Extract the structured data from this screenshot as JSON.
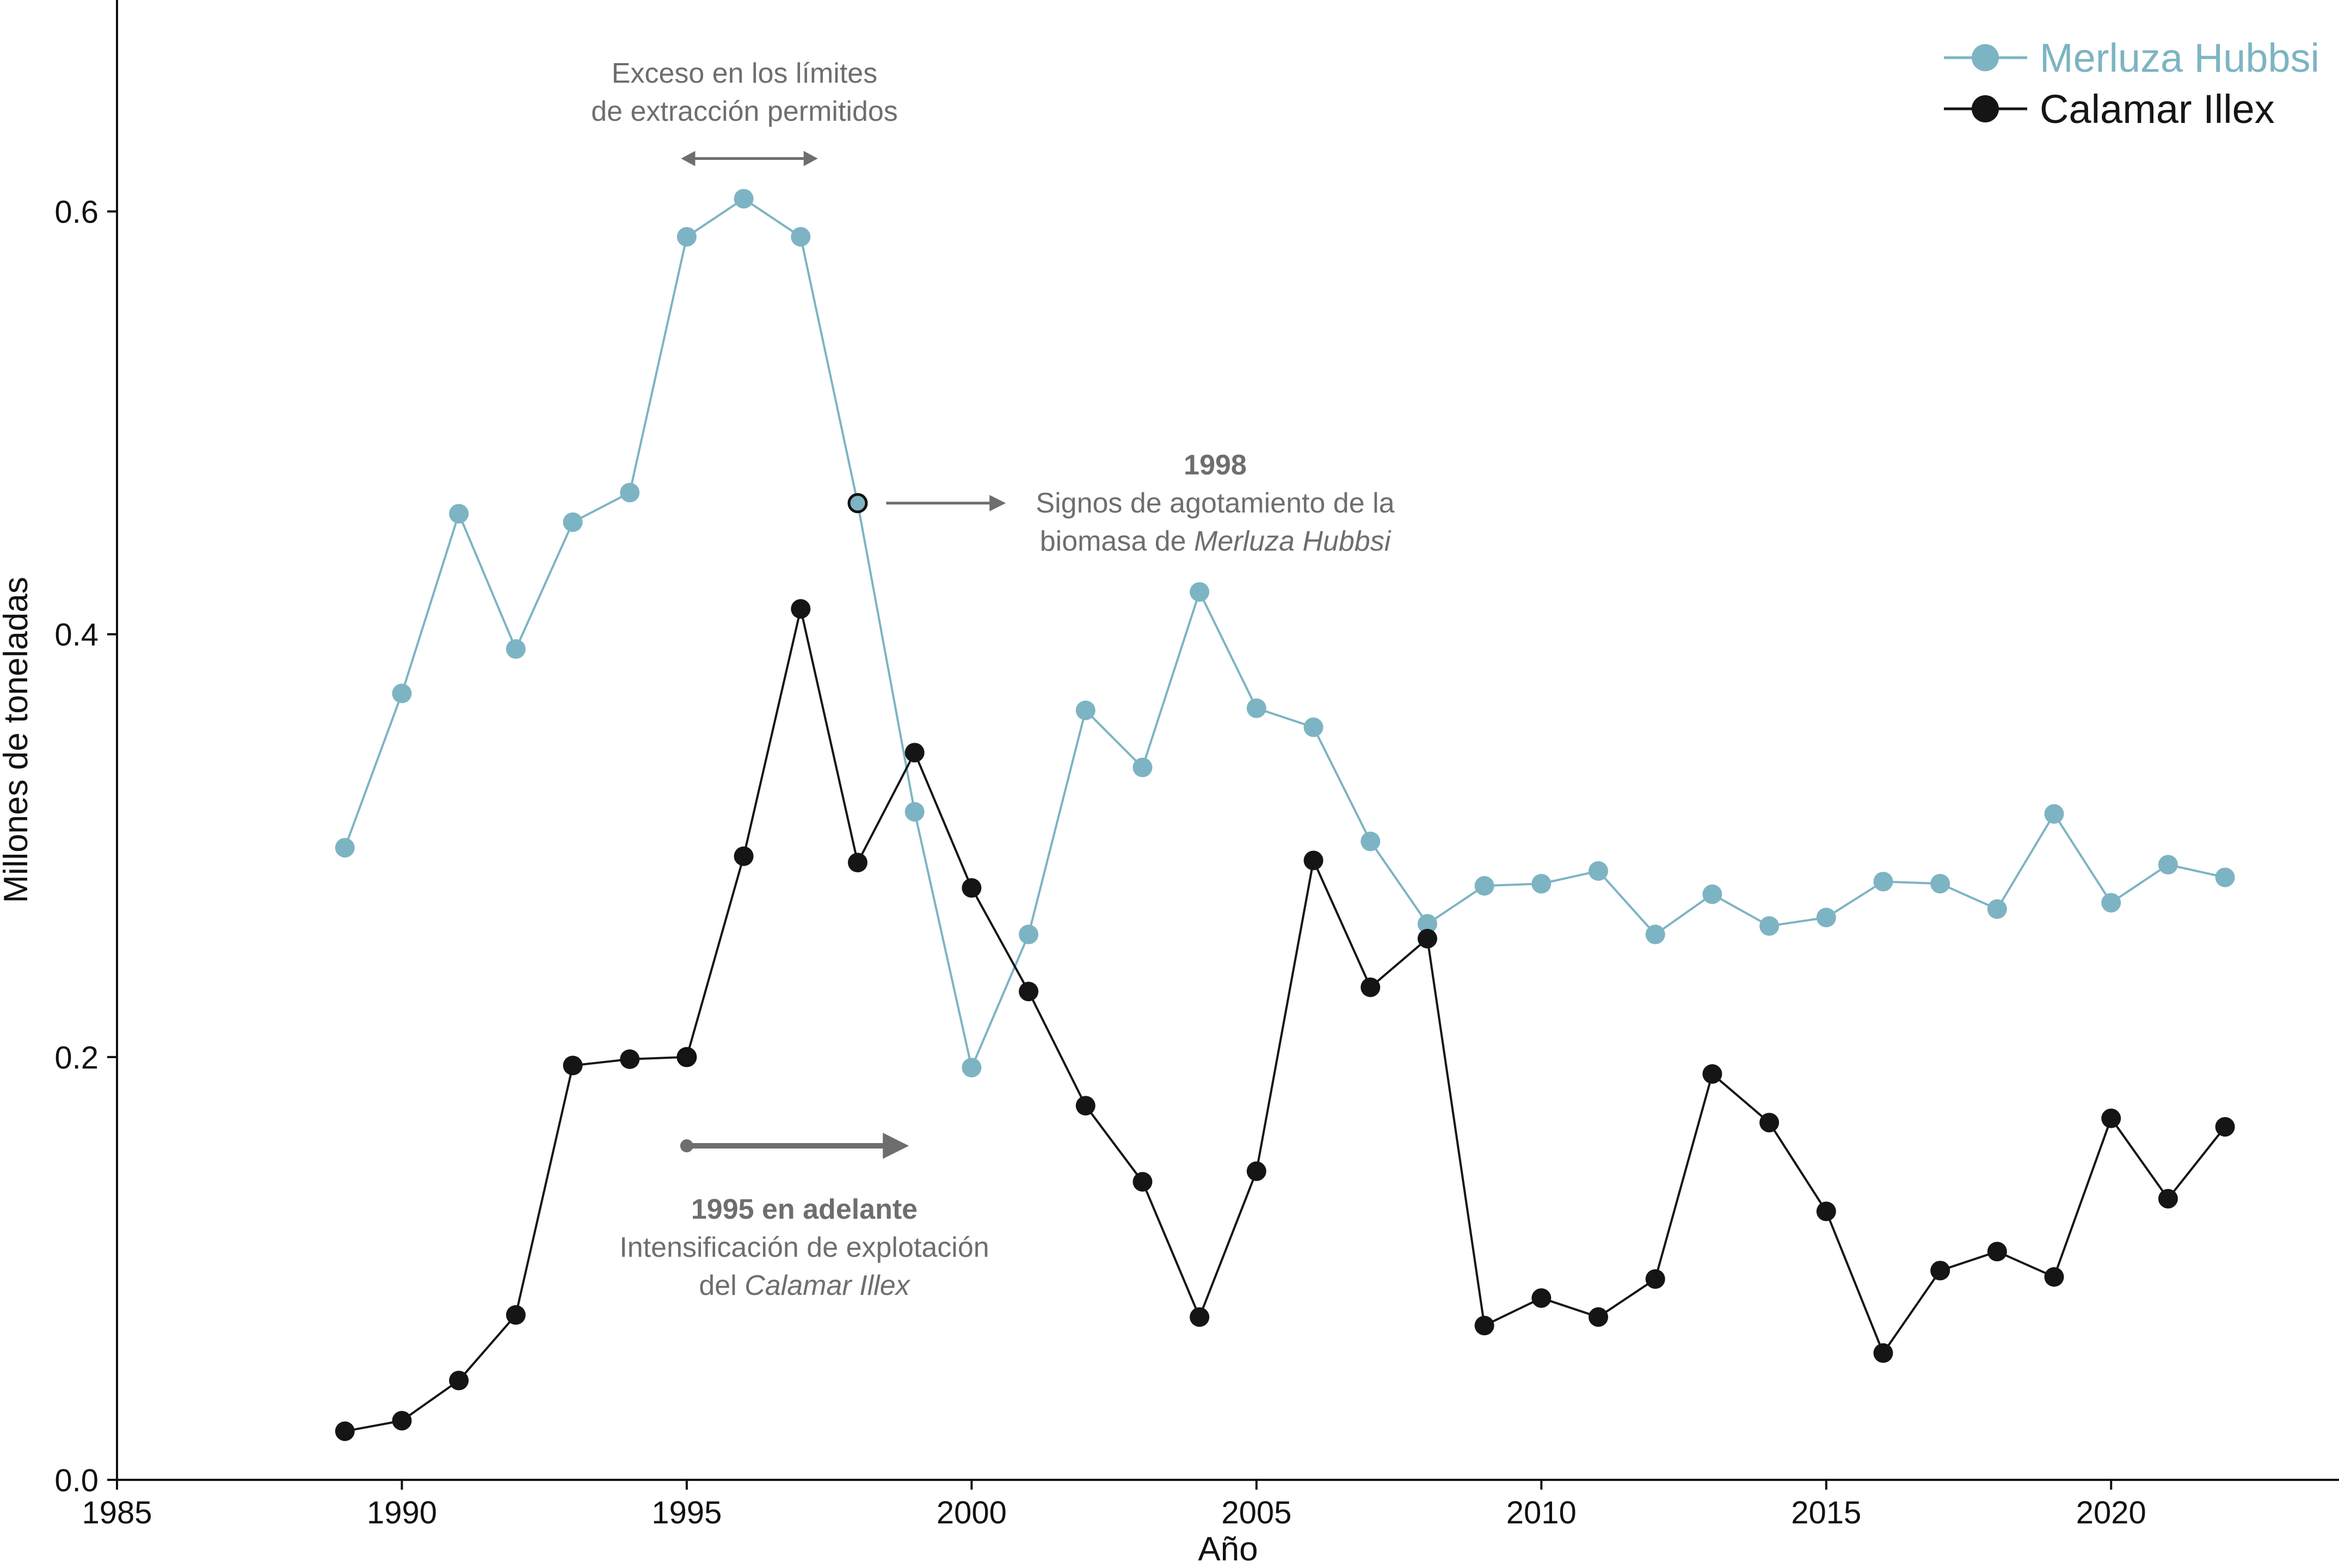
{
  "chart_data": {
    "type": "line",
    "xlabel": "Año",
    "ylabel": "Millones de toneladas",
    "xlim": [
      1985,
      2024
    ],
    "ylim": [
      0.0,
      0.7
    ],
    "xticks": [
      1985,
      1990,
      1995,
      2000,
      2005,
      2010,
      2015,
      2020
    ],
    "xtick_labels": [
      "1985",
      "1990",
      "1995",
      "2000",
      "2005",
      "2010",
      "2015",
      "2020"
    ],
    "yticks": [
      0.0,
      0.2,
      0.4,
      0.6
    ],
    "ytick_labels": [
      "0.0",
      "0.2",
      "0.4",
      "0.6"
    ],
    "grid": false,
    "legend_position": "top-right",
    "x": [
      1989,
      1990,
      1991,
      1992,
      1993,
      1994,
      1995,
      1996,
      1997,
      1998,
      1999,
      2000,
      2001,
      2002,
      2003,
      2004,
      2005,
      2006,
      2007,
      2008,
      2009,
      2010,
      2011,
      2012,
      2013,
      2014,
      2015,
      2016,
      2017,
      2018,
      2019,
      2020,
      2021,
      2022
    ],
    "series": [
      {
        "name": "Merluza Hubbsi",
        "color": "#7db4c3",
        "values": [
          0.299,
          0.372,
          0.457,
          0.393,
          0.453,
          0.467,
          0.588,
          0.606,
          0.588,
          0.462,
          0.316,
          0.195,
          0.258,
          0.364,
          0.337,
          0.42,
          0.365,
          0.356,
          0.302,
          0.263,
          0.281,
          0.282,
          0.288,
          0.258,
          0.277,
          0.262,
          0.266,
          0.283,
          0.282,
          0.27,
          0.315,
          0.273,
          0.291,
          0.285
        ]
      },
      {
        "name": "Calamar Illex",
        "color": "#151515",
        "values": [
          0.023,
          0.028,
          0.047,
          0.078,
          0.196,
          0.199,
          0.2,
          0.295,
          0.412,
          0.292,
          0.344,
          0.28,
          0.231,
          0.177,
          0.141,
          0.077,
          0.146,
          0.293,
          0.233,
          0.256,
          0.073,
          0.086,
          0.077,
          0.095,
          0.192,
          0.169,
          0.127,
          0.06,
          0.099,
          0.108,
          0.096,
          0.171,
          0.133,
          0.167
        ]
      }
    ],
    "highlights": [
      {
        "series": 0,
        "year": 1998
      },
      {
        "series": 1,
        "year": 1995
      }
    ],
    "annotations": [
      {
        "id": "excess",
        "lines": [
          {
            "text": "Exceso en los límites",
            "bold": false
          },
          {
            "text": "de extracción permitidos",
            "bold": false
          }
        ],
        "arrow": {
          "type": "double",
          "x_from": 1994.9,
          "x_to": 1997.3,
          "y": 0.625
        }
      },
      {
        "id": "depletion",
        "lines": [
          {
            "text": "1998",
            "bold": true
          },
          {
            "text": "Signos de agotamiento de la",
            "bold": false
          },
          {
            "parts": [
              {
                "text": "biomasa de ",
                "italic": false
              },
              {
                "text": "Merluza Hubbsi",
                "italic": true
              }
            ]
          }
        ],
        "arrow": {
          "type": "right",
          "x_from": 1998.5,
          "x_to": 2000.6,
          "y": 0.462
        }
      },
      {
        "id": "intensification",
        "lines": [
          {
            "text": "1995 en adelante",
            "bold": true
          },
          {
            "text": "Intensificación de explotación",
            "bold": false
          },
          {
            "parts": [
              {
                "text": "del ",
                "italic": false
              },
              {
                "text": "Calamar Illex",
                "italic": true
              }
            ]
          }
        ],
        "arrow": {
          "type": "right-bold",
          "x_from": 1995,
          "x_to": 1998.9,
          "y": 0.158
        }
      }
    ]
  }
}
